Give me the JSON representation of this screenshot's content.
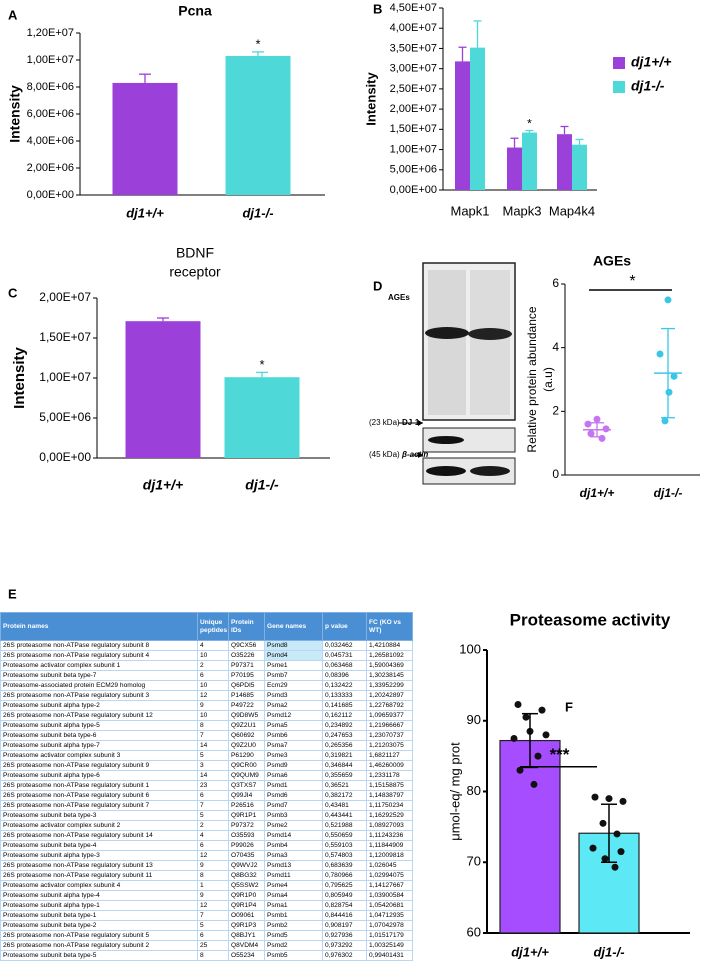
{
  "chart_data": [
    {
      "panel": "A",
      "type": "bar",
      "title": "Pcna",
      "ylabel": "Intensity",
      "categories": [
        "dj1+/+",
        "dj1-/-"
      ],
      "values": [
        8300000,
        10300000
      ],
      "errors": [
        650000,
        300000
      ],
      "colors": [
        "#9b40d8",
        "#4ed8d8"
      ],
      "annotations": [
        null,
        "*"
      ],
      "ylim": [
        0,
        12000000
      ],
      "yticks": [
        {
          "value": 0,
          "label": "0,00E+00"
        },
        {
          "value": 2000000,
          "label": "2,00E+06"
        },
        {
          "value": 4000000,
          "label": "4,00E+06"
        },
        {
          "value": 6000000,
          "label": "6,00E+06"
        },
        {
          "value": 8000000,
          "label": "8,00E+06"
        },
        {
          "value": 10000000,
          "label": "1,00E+07"
        },
        {
          "value": 12000000,
          "label": "1,20E+07"
        }
      ]
    },
    {
      "panel": "B",
      "type": "grouped_bar",
      "ylabel": "Intensity",
      "legend": "right",
      "categories": [
        "Mapk1",
        "Mapk3",
        "Map4k4"
      ],
      "series": [
        {
          "name": "dj1+/+",
          "color": "#9b40d8",
          "values": [
            31800000,
            10500000,
            13800000
          ],
          "errors": [
            3500000,
            2300000,
            1900000
          ],
          "annotations": [
            null,
            null,
            null
          ]
        },
        {
          "name": "dj1-/-",
          "color": "#4ed8d8",
          "values": [
            35200000,
            14200000,
            11200000
          ],
          "errors": [
            6600000,
            500000,
            1300000
          ],
          "annotations": [
            null,
            "*",
            null
          ]
        }
      ],
      "ylim": [
        0,
        45000000
      ],
      "yticks": [
        {
          "value": 0,
          "label": "0,00E+00"
        },
        {
          "value": 5000000,
          "label": "5,00E+06"
        },
        {
          "value": 10000000,
          "label": "1,00E+07"
        },
        {
          "value": 15000000,
          "label": "1,50E+07"
        },
        {
          "value": 20000000,
          "label": "2,00E+07"
        },
        {
          "value": 25000000,
          "label": "2,50E+07"
        },
        {
          "value": 30000000,
          "label": "3,00E+07"
        },
        {
          "value": 35000000,
          "label": "3,50E+07"
        },
        {
          "value": 40000000,
          "label": "4,00E+07"
        },
        {
          "value": 45000000,
          "label": "4,50E+07"
        }
      ]
    },
    {
      "panel": "C",
      "type": "bar",
      "title": [
        "BDNF",
        "receptor"
      ],
      "ylabel": "Intensity",
      "categories": [
        "dj1+/+",
        "dj1-/-"
      ],
      "values": [
        17100000,
        10100000
      ],
      "errors": [
        400000,
        600000
      ],
      "colors": [
        "#9b40d8",
        "#4ed8d8"
      ],
      "annotations": [
        null,
        "*"
      ],
      "ylim": [
        0,
        20000000
      ],
      "yticks": [
        {
          "value": 0,
          "label": "0,00E+00"
        },
        {
          "value": 5000000,
          "label": "5,00E+06"
        },
        {
          "value": 10000000,
          "label": "1,00E+07"
        },
        {
          "value": 15000000,
          "label": "1,50E+07"
        },
        {
          "value": 20000000,
          "label": "2,00E+07"
        }
      ]
    },
    {
      "type": "dotplot",
      "title": "AGEs",
      "ylabel": [
        "Relative protein abundance",
        "(a.u)"
      ],
      "categories": [
        "dj1+/+",
        "dj1-/-"
      ],
      "colors": [
        "#c774f0",
        "#3cc6e6"
      ],
      "points": [
        [
          1.75,
          1.6,
          1.45,
          1.3,
          1.15
        ],
        [
          5.5,
          3.8,
          3.1,
          2.6,
          1.7
        ]
      ],
      "means": [
        1.42,
        3.2
      ],
      "sd": [
        0.22,
        1.4
      ],
      "significance": "*",
      "ylim": [
        0,
        6
      ],
      "yticks": [
        0,
        2,
        4,
        6
      ]
    },
    {
      "panel": "F",
      "type": "bar_dots",
      "title": "Proteasome activity",
      "ylabel": "μmol-eq/ mg prot",
      "categories": [
        "dj1+/+",
        "dj1-/-"
      ],
      "values": [
        87.2,
        74.1
      ],
      "errors": [
        3.8,
        4.1
      ],
      "colors": [
        "#a64dff",
        "#5ce8f5"
      ],
      "points": [
        [
          92.3,
          91.5,
          90.5,
          88.0,
          87.5,
          85.0,
          83.0,
          81.0,
          88.5
        ],
        [
          79.2,
          78.6,
          75.5,
          74.0,
          72.0,
          71.5,
          70.5,
          69.3,
          79.0
        ]
      ],
      "significance": "***",
      "ylim": [
        60,
        100
      ],
      "yticks": [
        60,
        70,
        80,
        90,
        100
      ]
    }
  ],
  "blot": {
    "panel": "D",
    "label": "AGEs",
    "bands": [
      {
        "size": "(23 kDa)",
        "name": "DJ-1"
      },
      {
        "size": "(45 kDa)",
        "name": "β-actin"
      }
    ]
  },
  "table": {
    "panel": "E",
    "columns": [
      "Protein names",
      "Unique peptides",
      "Protein IDs",
      "Gene names",
      "p value",
      "FC (KO vs WT)"
    ],
    "highlight": {
      "column": 3,
      "rows": [
        0,
        1
      ],
      "color": "#c7e9f8"
    },
    "rows": [
      [
        "26S proteasome non-ATPase regulatory subunit 8",
        "4",
        "Q9CX56",
        "Psmd8",
        "0,032462",
        "1,4210884"
      ],
      [
        "26S proteasome non-ATPase regulatory subunit 4",
        "10",
        "O35226",
        "Psmd4",
        "0,045731",
        "1,26581092"
      ],
      [
        "Proteasome activator complex subunit 1",
        "2",
        "P97371",
        "Psme1",
        "0,063468",
        "1,59004369"
      ],
      [
        "Proteasome subunit beta type-7",
        "6",
        "P70195",
        "Psmb7",
        "0,08396",
        "1,30238145"
      ],
      [
        "Proteasome-associated protein ECM29 homolog",
        "10",
        "Q6PDI5",
        "Ecm29",
        "0,132422",
        "1,33952299"
      ],
      [
        "26S proteasome non-ATPase regulatory subunit 3",
        "12",
        "P14685",
        "Psmd3",
        "0,133333",
        "1,20242897"
      ],
      [
        "Proteasome subunit alpha type-2",
        "9",
        "P49722",
        "Psma2",
        "0,141685",
        "1,22768792"
      ],
      [
        "26S proteasome non-ATPase regulatory subunit 12",
        "10",
        "Q9D8W5",
        "Psmd12",
        "0,162112",
        "1,09659377"
      ],
      [
        "Proteasome subunit alpha type-5",
        "8",
        "Q9Z2U1",
        "Psma5",
        "0,234892",
        "1,21966667"
      ],
      [
        "Proteasome subunit beta type-6",
        "7",
        "Q60692",
        "Psmb6",
        "0,247653",
        "1,23070737"
      ],
      [
        "Proteasome subunit alpha type-7",
        "14",
        "Q9Z2U0",
        "Psma7",
        "0,265356",
        "1,21203075"
      ],
      [
        "Proteasome activator complex subunit 3",
        "5",
        "P61290",
        "Psme3",
        "0,319821",
        "1,6821127"
      ],
      [
        "26S proteasome non-ATPase regulatory subunit 9",
        "3",
        "Q9CR00",
        "Psmd9",
        "0,346844",
        "1,46260009"
      ],
      [
        "Proteasome subunit alpha type-6",
        "14",
        "Q9QUM9",
        "Psma6",
        "0,355659",
        "1,2331178"
      ],
      [
        "26S proteasome non-ATPase regulatory subunit 1",
        "23",
        "Q3TXS7",
        "Psmd1",
        "0,36521",
        "1,15158875"
      ],
      [
        "26S proteasome non-ATPase regulatory subunit 6",
        "6",
        "Q99JI4",
        "Psmd6",
        "0,382172",
        "1,14838797"
      ],
      [
        "26S proteasome non-ATPase regulatory subunit 7",
        "7",
        "P26516",
        "Psmd7",
        "0,43481",
        "1,11750234"
      ],
      [
        "Proteasome subunit beta type-3",
        "5",
        "Q9R1P1",
        "Psmb3",
        "0,443441",
        "1,16292529"
      ],
      [
        "Proteasome activator complex subunit 2",
        "2",
        "P97372",
        "Psme2",
        "0,521988",
        "1,08927093"
      ],
      [
        "26S proteasome non-ATPase regulatory subunit 14",
        "4",
        "O35593",
        "Psmd14",
        "0,550659",
        "1,11243236"
      ],
      [
        "Proteasome subunit beta type-4",
        "6",
        "P99026",
        "Psmb4",
        "0,559103",
        "1,11844909"
      ],
      [
        "Proteasome subunit alpha type-3",
        "12",
        "O70435",
        "Psma3",
        "0,574803",
        "1,12009818"
      ],
      [
        "26S proteasome non-ATPase regulatory subunit 13",
        "9",
        "Q9WVJ2",
        "Psmd13",
        "0,683639",
        "1,026045"
      ],
      [
        "26S proteasome non-ATPase regulatory subunit 11",
        "8",
        "Q8BG32",
        "Psmd11",
        "0,780966",
        "1,02994075"
      ],
      [
        "Proteasome activator complex subunit 4",
        "1",
        "Q5SSW2",
        "Psme4",
        "0,795625",
        "1,14127667"
      ],
      [
        "Proteasome subunit alpha type-4",
        "9",
        "Q9R1P0",
        "Psma4",
        "0,805949",
        "1,03900584"
      ],
      [
        "Proteasome subunit alpha type-1",
        "12",
        "Q9R1P4",
        "Psma1",
        "0,828754",
        "1,05420681"
      ],
      [
        "Proteasome subunit beta type-1",
        "7",
        "O09061",
        "Psmb1",
        "0,844416",
        "1,04712935"
      ],
      [
        "Proteasome subunit beta type-2",
        "5",
        "Q9R1P3",
        "Psmb2",
        "0,908197",
        "1,07042978"
      ],
      [
        "26S proteasome non-ATPase regulatory subunit 5",
        "6",
        "Q8BJY1",
        "Psmd5",
        "0,927936",
        "1,01517179"
      ],
      [
        "26S proteasome non-ATPase regulatory subunit 2",
        "25",
        "Q8VDM4",
        "Psmd2",
        "0,973292",
        "1,00325149"
      ],
      [
        "Proteasome subunit beta type-5",
        "8",
        "O55234",
        "Psmb5",
        "0,976302",
        "0,99401431"
      ]
    ]
  }
}
